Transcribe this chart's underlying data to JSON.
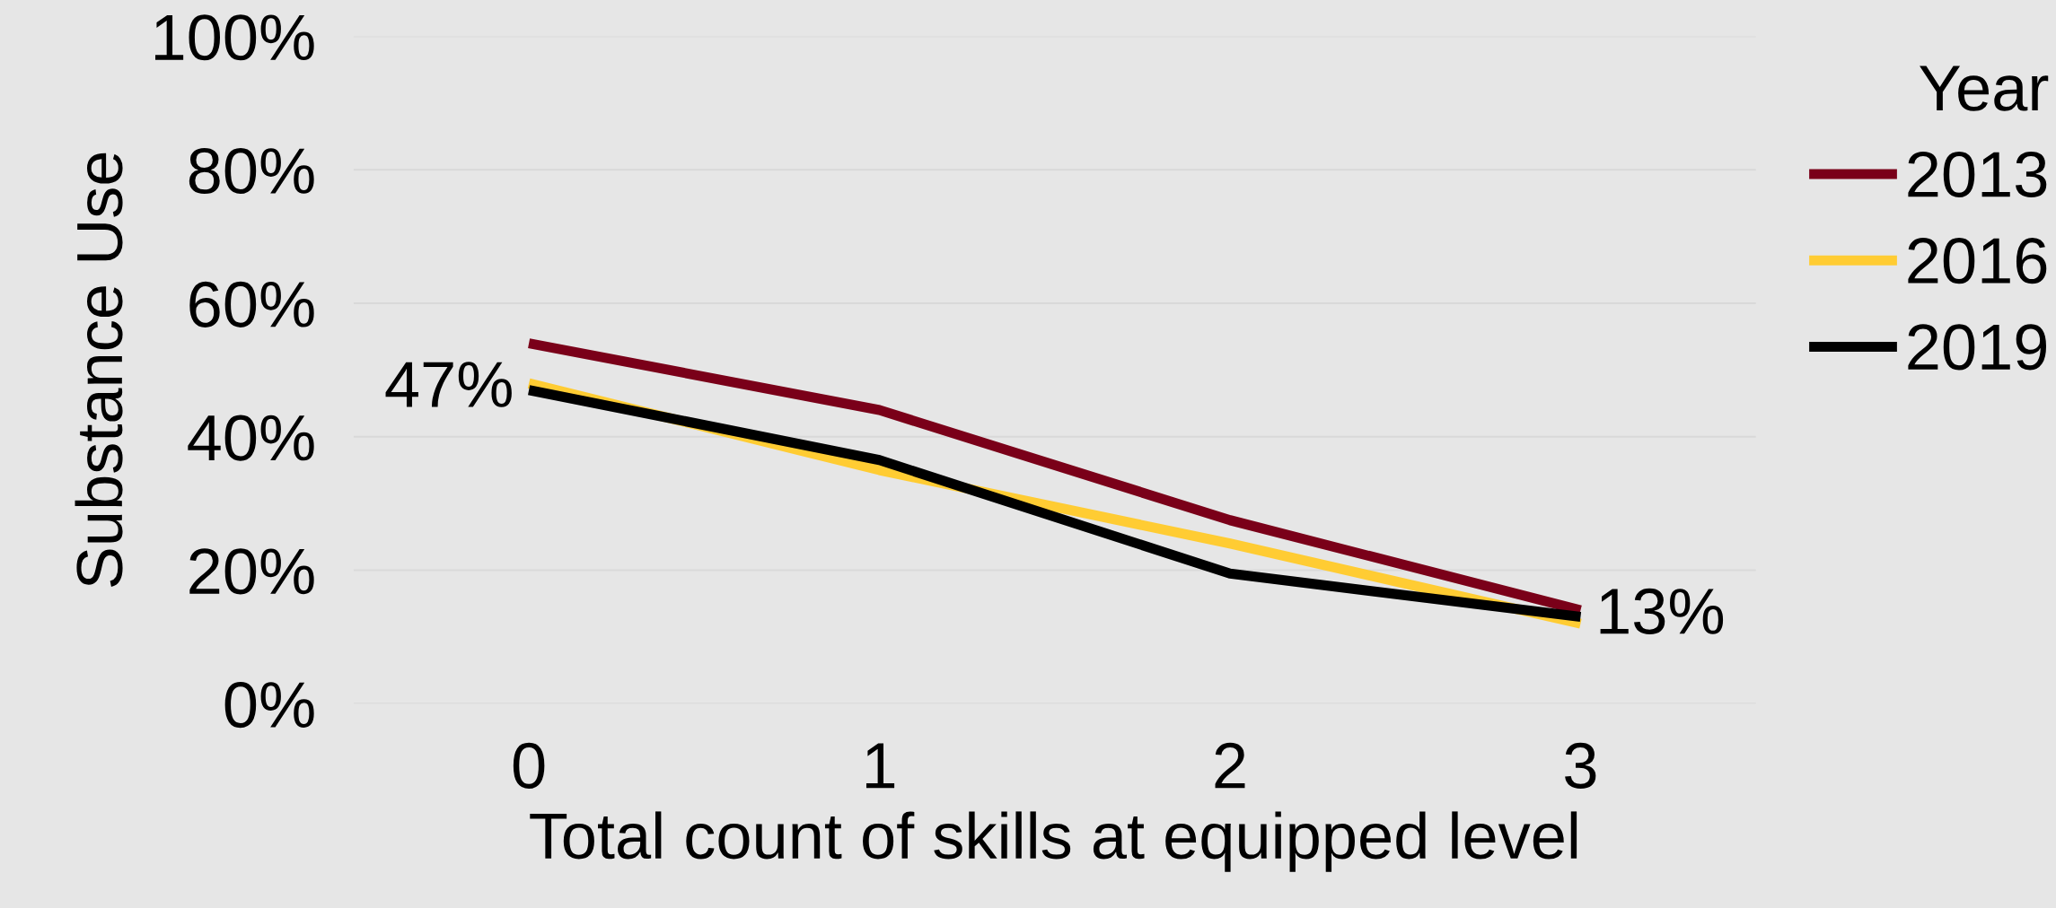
{
  "chart_data": {
    "type": "line",
    "xlabel": "Total count of skills at equipped level",
    "ylabel": "Substance Use",
    "legend_title": "Year",
    "categories": [
      "0",
      "1",
      "2",
      "3"
    ],
    "series": [
      {
        "name": "2013",
        "color": "#7a0019",
        "values": [
          54,
          44,
          27.5,
          14
        ]
      },
      {
        "name": "2016",
        "color": "#ffcc33",
        "values": [
          48,
          35,
          24,
          12
        ]
      },
      {
        "name": "2019",
        "color": "#000000",
        "values": [
          47,
          36.5,
          19.5,
          13
        ],
        "value_labels": [
          "47%",
          null,
          null,
          "13%"
        ]
      }
    ],
    "ylim": [
      0,
      100
    ],
    "yticks": [
      {
        "value": 0,
        "label": "0%"
      },
      {
        "value": 20,
        "label": "20%"
      },
      {
        "value": 40,
        "label": "40%"
      },
      {
        "value": 60,
        "label": "60%"
      },
      {
        "value": 80,
        "label": "80%"
      },
      {
        "value": 100,
        "label": "100%"
      }
    ],
    "grid": "y",
    "legend": "right",
    "marker": "none",
    "line_style": "solid"
  }
}
